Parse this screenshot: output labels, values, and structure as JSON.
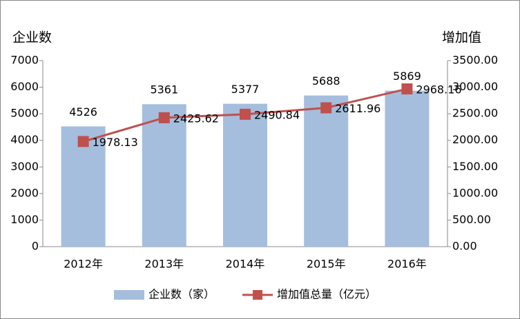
{
  "chart_data": {
    "type": "combo",
    "y_label": "企业数",
    "y2_label": "增加值",
    "categories": [
      "2012年",
      "2013年",
      "2014年",
      "2015年",
      "2016年"
    ],
    "series": [
      {
        "name": "企业数（家）",
        "type": "bar",
        "color": "#a5bedd",
        "values": [
          4526,
          5361,
          5377,
          5688,
          5869
        ]
      },
      {
        "name": "增加值总量（亿元）",
        "type": "line",
        "axis": "y2",
        "color": "#c0504d",
        "values": [
          1978.13,
          2425.62,
          2490.84,
          2611.96,
          2968.16
        ]
      }
    ],
    "ylim": [
      0,
      7000
    ],
    "yticks": [
      0,
      1000,
      2000,
      3000,
      4000,
      5000,
      6000,
      7000
    ],
    "y2lim": [
      0,
      3500
    ],
    "y2ticks": [
      {
        "value": 0,
        "label": "0.00"
      },
      {
        "value": 500,
        "label": "500.00"
      },
      {
        "value": 1000,
        "label": "1000.00"
      },
      {
        "value": 1500,
        "label": "1500.00"
      },
      {
        "value": 2000,
        "label": "2000.00"
      },
      {
        "value": 2500,
        "label": "2500.00"
      },
      {
        "value": 3000,
        "label": "3000.00"
      },
      {
        "value": 3500,
        "label": "3500.00"
      }
    ],
    "legend": "bottom"
  }
}
